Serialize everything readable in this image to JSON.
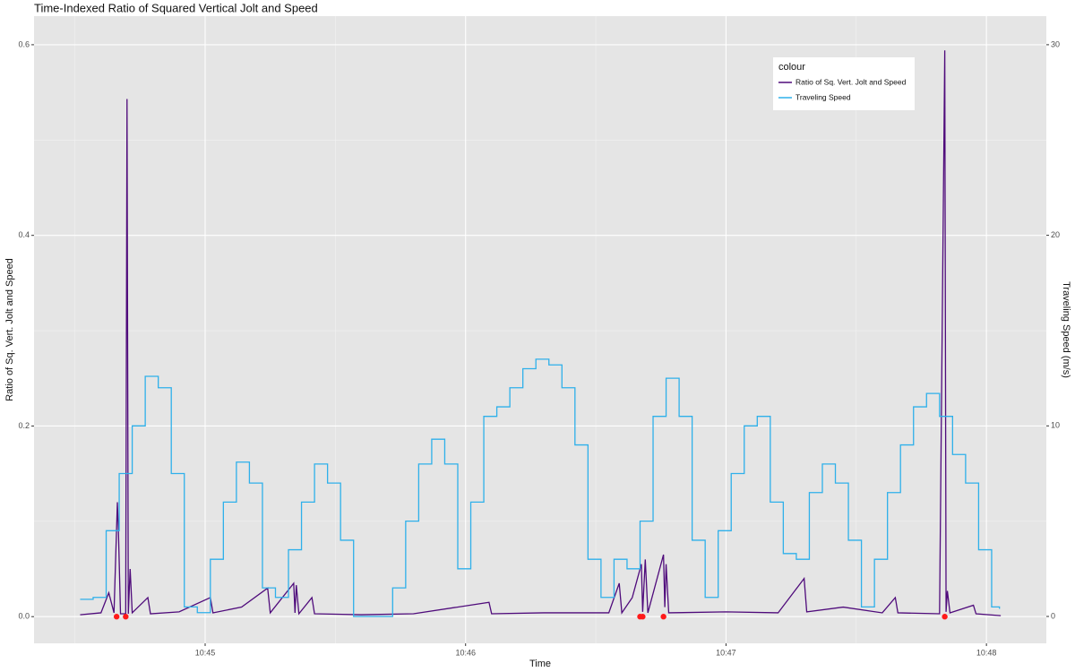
{
  "chart_data": {
    "type": "line",
    "title": "Time-Indexed Ratio of Squared Vertical Jolt and Speed",
    "x_label": "Time",
    "y_label": "Ratio of Sq. Vert. Jolt and Speed",
    "y2_label": "Traveling Speed (m/s)",
    "legend_title": "colour",
    "legend_position": "top-right",
    "grid": true,
    "xlim": [
      44.343,
      48.23
    ],
    "xticks": [
      {
        "value": 45,
        "label": "10:45"
      },
      {
        "value": 46,
        "label": "10:46"
      },
      {
        "value": 47,
        "label": "10:47"
      },
      {
        "value": 48,
        "label": "10:48"
      }
    ],
    "minor_xticks": [
      44.5,
      45.5,
      46.5,
      47.5
    ],
    "ylim": [
      -0.028,
      0.63
    ],
    "yticks": [
      {
        "value": 0,
        "label": "0.0"
      },
      0.2,
      0.4,
      0.6
    ],
    "minor_yticks": [
      0.1,
      0.3,
      0.5
    ],
    "y2lim": [
      -1.41,
      31.5
    ],
    "y2ticks": [
      0,
      10,
      20,
      30
    ],
    "series": [
      {
        "name": "Ratio of Sq. Vert. Jolt and Speed",
        "color": "#4f0b7b",
        "step": false,
        "x": [
          44.52,
          44.6,
          44.63,
          44.65,
          44.663,
          44.667,
          44.675,
          44.695,
          44.7,
          44.705,
          44.712,
          44.72,
          44.78,
          44.79,
          44.9,
          45.02,
          45.03,
          45.14,
          45.24,
          45.25,
          45.34,
          45.345,
          45.35,
          45.36,
          45.41,
          45.42,
          45.6,
          45.8,
          46.09,
          46.1,
          46.3,
          46.55,
          46.59,
          46.6,
          46.64,
          46.675,
          46.68,
          46.69,
          46.7,
          46.76,
          46.765,
          46.77,
          46.78,
          47.0,
          47.2,
          47.3,
          47.31,
          47.45,
          47.6,
          47.65,
          47.66,
          47.82,
          47.84,
          47.845,
          47.85,
          47.86,
          47.95,
          47.96,
          48.055
        ],
        "values": [
          0.002,
          0.004,
          0.025,
          0.004,
          0.12,
          0.09,
          0.003,
          0.003,
          0.543,
          0.003,
          0.05,
          0.004,
          0.02,
          0.003,
          0.005,
          0.02,
          0.004,
          0.01,
          0.03,
          0.004,
          0.035,
          0.004,
          0.033,
          0.003,
          0.02,
          0.003,
          0.002,
          0.003,
          0.015,
          0.003,
          0.004,
          0.004,
          0.035,
          0.004,
          0.02,
          0.055,
          0.005,
          0.06,
          0.004,
          0.065,
          0.01,
          0.055,
          0.004,
          0.005,
          0.004,
          0.04,
          0.005,
          0.01,
          0.004,
          0.02,
          0.004,
          0.003,
          0.594,
          0.005,
          0.027,
          0.004,
          0.012,
          0.003,
          0.001
        ]
      },
      {
        "name": "Traveling Speed",
        "color": "#2eb0ea",
        "axis": "y2",
        "step": true,
        "x": [
          44.52,
          44.57,
          44.62,
          44.67,
          44.72,
          44.77,
          44.82,
          44.87,
          44.92,
          44.97,
          45.02,
          45.07,
          45.12,
          45.17,
          45.22,
          45.27,
          45.32,
          45.37,
          45.42,
          45.47,
          45.52,
          45.57,
          45.62,
          45.67,
          45.72,
          45.77,
          45.82,
          45.87,
          45.92,
          45.97,
          46.02,
          46.07,
          46.12,
          46.17,
          46.22,
          46.27,
          46.32,
          46.37,
          46.42,
          46.47,
          46.52,
          46.57,
          46.62,
          46.67,
          46.72,
          46.77,
          46.82,
          46.87,
          46.92,
          46.97,
          47.02,
          47.07,
          47.12,
          47.17,
          47.22,
          47.27,
          47.32,
          47.37,
          47.42,
          47.47,
          47.52,
          47.57,
          47.62,
          47.67,
          47.72,
          47.77,
          47.82,
          47.87,
          47.92,
          47.97,
          48.02,
          48.05
        ],
        "values": [
          0.9,
          1.0,
          4.5,
          7.5,
          10.0,
          12.6,
          12.0,
          7.5,
          0.5,
          0.2,
          3.0,
          6.0,
          8.1,
          7.0,
          1.5,
          1.0,
          3.5,
          6.0,
          8.0,
          7.0,
          4.0,
          0,
          0,
          0,
          1.5,
          5.0,
          8.0,
          9.3,
          8.0,
          2.5,
          6.0,
          10.5,
          11.0,
          12.0,
          13.0,
          13.5,
          13.2,
          12.0,
          9.0,
          3.0,
          1.0,
          3.0,
          2.5,
          5.0,
          10.5,
          12.5,
          10.5,
          4.0,
          1.0,
          4.5,
          7.5,
          10.0,
          10.5,
          6.0,
          3.3,
          3.0,
          6.5,
          8.0,
          7.0,
          4.0,
          0.5,
          3.0,
          6.5,
          9.0,
          11.0,
          11.7,
          10.5,
          8.5,
          7.0,
          3.5,
          0.5,
          0.4
        ]
      }
    ],
    "markers": {
      "color": "#ff1a1a",
      "x": [
        44.66,
        44.695,
        46.67,
        46.68,
        46.76,
        47.84
      ],
      "values": [
        0,
        0,
        0,
        0,
        0,
        0
      ]
    }
  }
}
